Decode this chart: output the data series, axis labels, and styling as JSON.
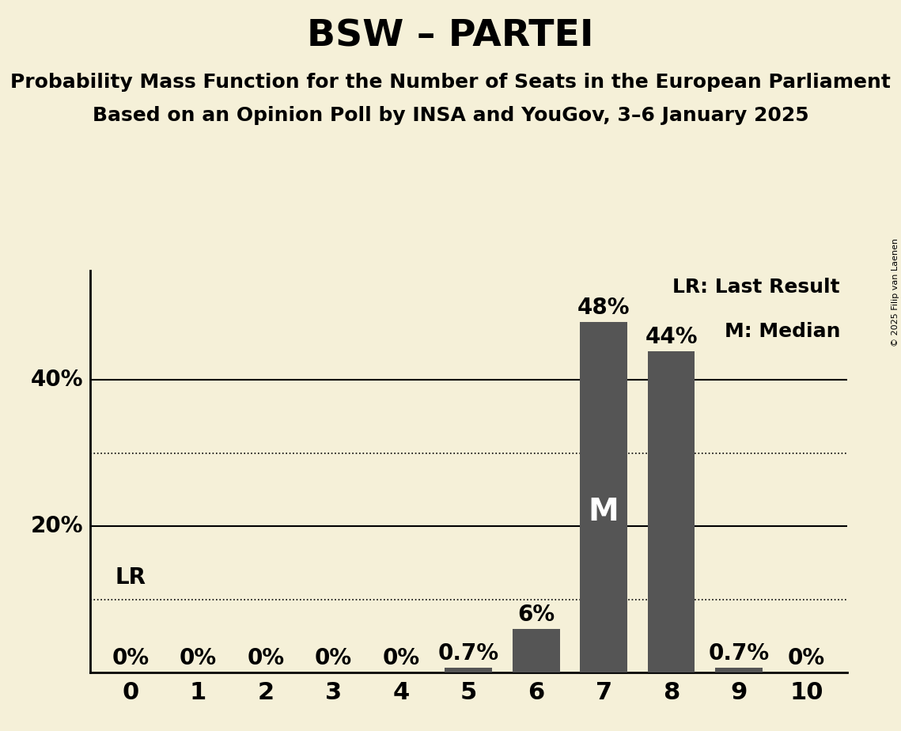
{
  "title": "BSW – PARTEI",
  "subtitle1": "Probability Mass Function for the Number of Seats in the European Parliament",
  "subtitle2": "Based on an Opinion Poll by INSA and YouGov, 3–6 January 2025",
  "copyright": "© 2025 Filip van Laenen",
  "seats": [
    0,
    1,
    2,
    3,
    4,
    5,
    6,
    7,
    8,
    9,
    10
  ],
  "probabilities": [
    0.0,
    0.0,
    0.0,
    0.0,
    0.0,
    0.7,
    6.0,
    48.0,
    44.0,
    0.7,
    0.0
  ],
  "bar_color": "#555555",
  "bg_color": "#f5f0d8",
  "median_seat": 7,
  "lr_seat": 0,
  "ylim": [
    0,
    55
  ],
  "solid_gridlines": [
    20,
    40
  ],
  "dotted_gridlines": [
    10,
    30
  ],
  "label_fontsize": 20,
  "title_fontsize": 34,
  "subtitle_fontsize": 18,
  "tick_fontsize": 22,
  "bar_label_fontsize": 20,
  "legend_fontsize": 18,
  "m_fontsize": 28
}
